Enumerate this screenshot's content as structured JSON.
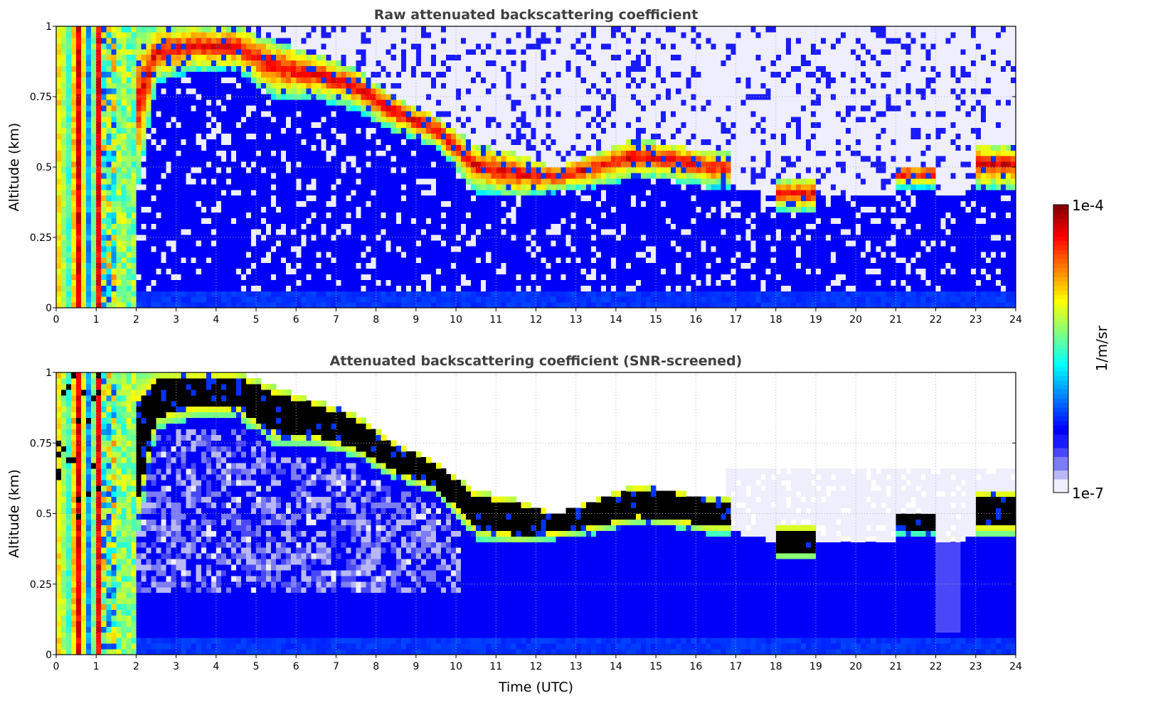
{
  "chart_data": [
    {
      "type": "heatmap",
      "title": "Raw attenuated backscattering coefficient",
      "xlabel": "",
      "ylabel": "Altitude (km)",
      "xlim": [
        0,
        24
      ],
      "ylim": [
        0,
        1
      ],
      "xticks": [
        "0",
        "1",
        "2",
        "3",
        "4",
        "5",
        "6",
        "7",
        "8",
        "9",
        "10",
        "11",
        "12",
        "13",
        "14",
        "15",
        "16",
        "17",
        "18",
        "19",
        "20",
        "21",
        "22",
        "23",
        "24"
      ],
      "yticks": [
        "0",
        "0.25",
        "0.5",
        "0.75",
        "1"
      ],
      "grid": true,
      "screened": false
    },
    {
      "type": "heatmap",
      "title": "Attenuated backscattering coefficient (SNR-screened)",
      "xlabel": "Time (UTC)",
      "ylabel": "Altitude (km)",
      "xlim": [
        0,
        24
      ],
      "ylim": [
        0,
        1
      ],
      "xticks": [
        "0",
        "1",
        "2",
        "3",
        "4",
        "5",
        "6",
        "7",
        "8",
        "9",
        "10",
        "11",
        "12",
        "13",
        "14",
        "15",
        "16",
        "17",
        "18",
        "19",
        "20",
        "21",
        "22",
        "23",
        "24"
      ],
      "yticks": [
        "0",
        "0.25",
        "0.5",
        "0.75",
        "1"
      ],
      "grid": true,
      "screened": true
    }
  ],
  "profile_by_hour": {
    "hour": [
      0.5,
      1.5,
      2.5,
      3.5,
      4.5,
      5.5,
      6.5,
      7.5,
      8.5,
      9.5,
      10.5,
      11.5,
      12.5,
      13.5,
      14.5,
      15.5,
      16.3,
      17.5,
      18.5,
      19.5,
      20.5,
      21.5,
      22.5,
      23.5
    ],
    "cloud_base_km": [
      0,
      0,
      0.82,
      0.86,
      0.86,
      0.76,
      0.76,
      0.72,
      0.64,
      0.59,
      0.43,
      0.41,
      0.43,
      0.45,
      0.48,
      0.47,
      0.45,
      null,
      0.36,
      null,
      null,
      0.45,
      null,
      0.44
    ],
    "cloud_top_km": [
      1,
      1,
      1,
      1,
      1,
      0.95,
      0.9,
      0.85,
      0.75,
      0.68,
      0.58,
      0.55,
      0.5,
      0.55,
      0.6,
      0.58,
      0.55,
      null,
      0.45,
      null,
      null,
      0.5,
      null,
      0.58
    ],
    "boundary_top_km": [
      1,
      1,
      0.82,
      0.86,
      0.86,
      0.76,
      0.76,
      0.72,
      0.64,
      0.59,
      0.43,
      0.41,
      0.43,
      0.45,
      0.48,
      0.47,
      0.45,
      0.42,
      0.38,
      0.4,
      0.4,
      0.42,
      0.4,
      0.44
    ]
  },
  "colorbar": {
    "label": "1/m/sr",
    "max_label": "1e-4",
    "min_label": "1e-7",
    "log10_range": [
      -7,
      -4
    ]
  }
}
